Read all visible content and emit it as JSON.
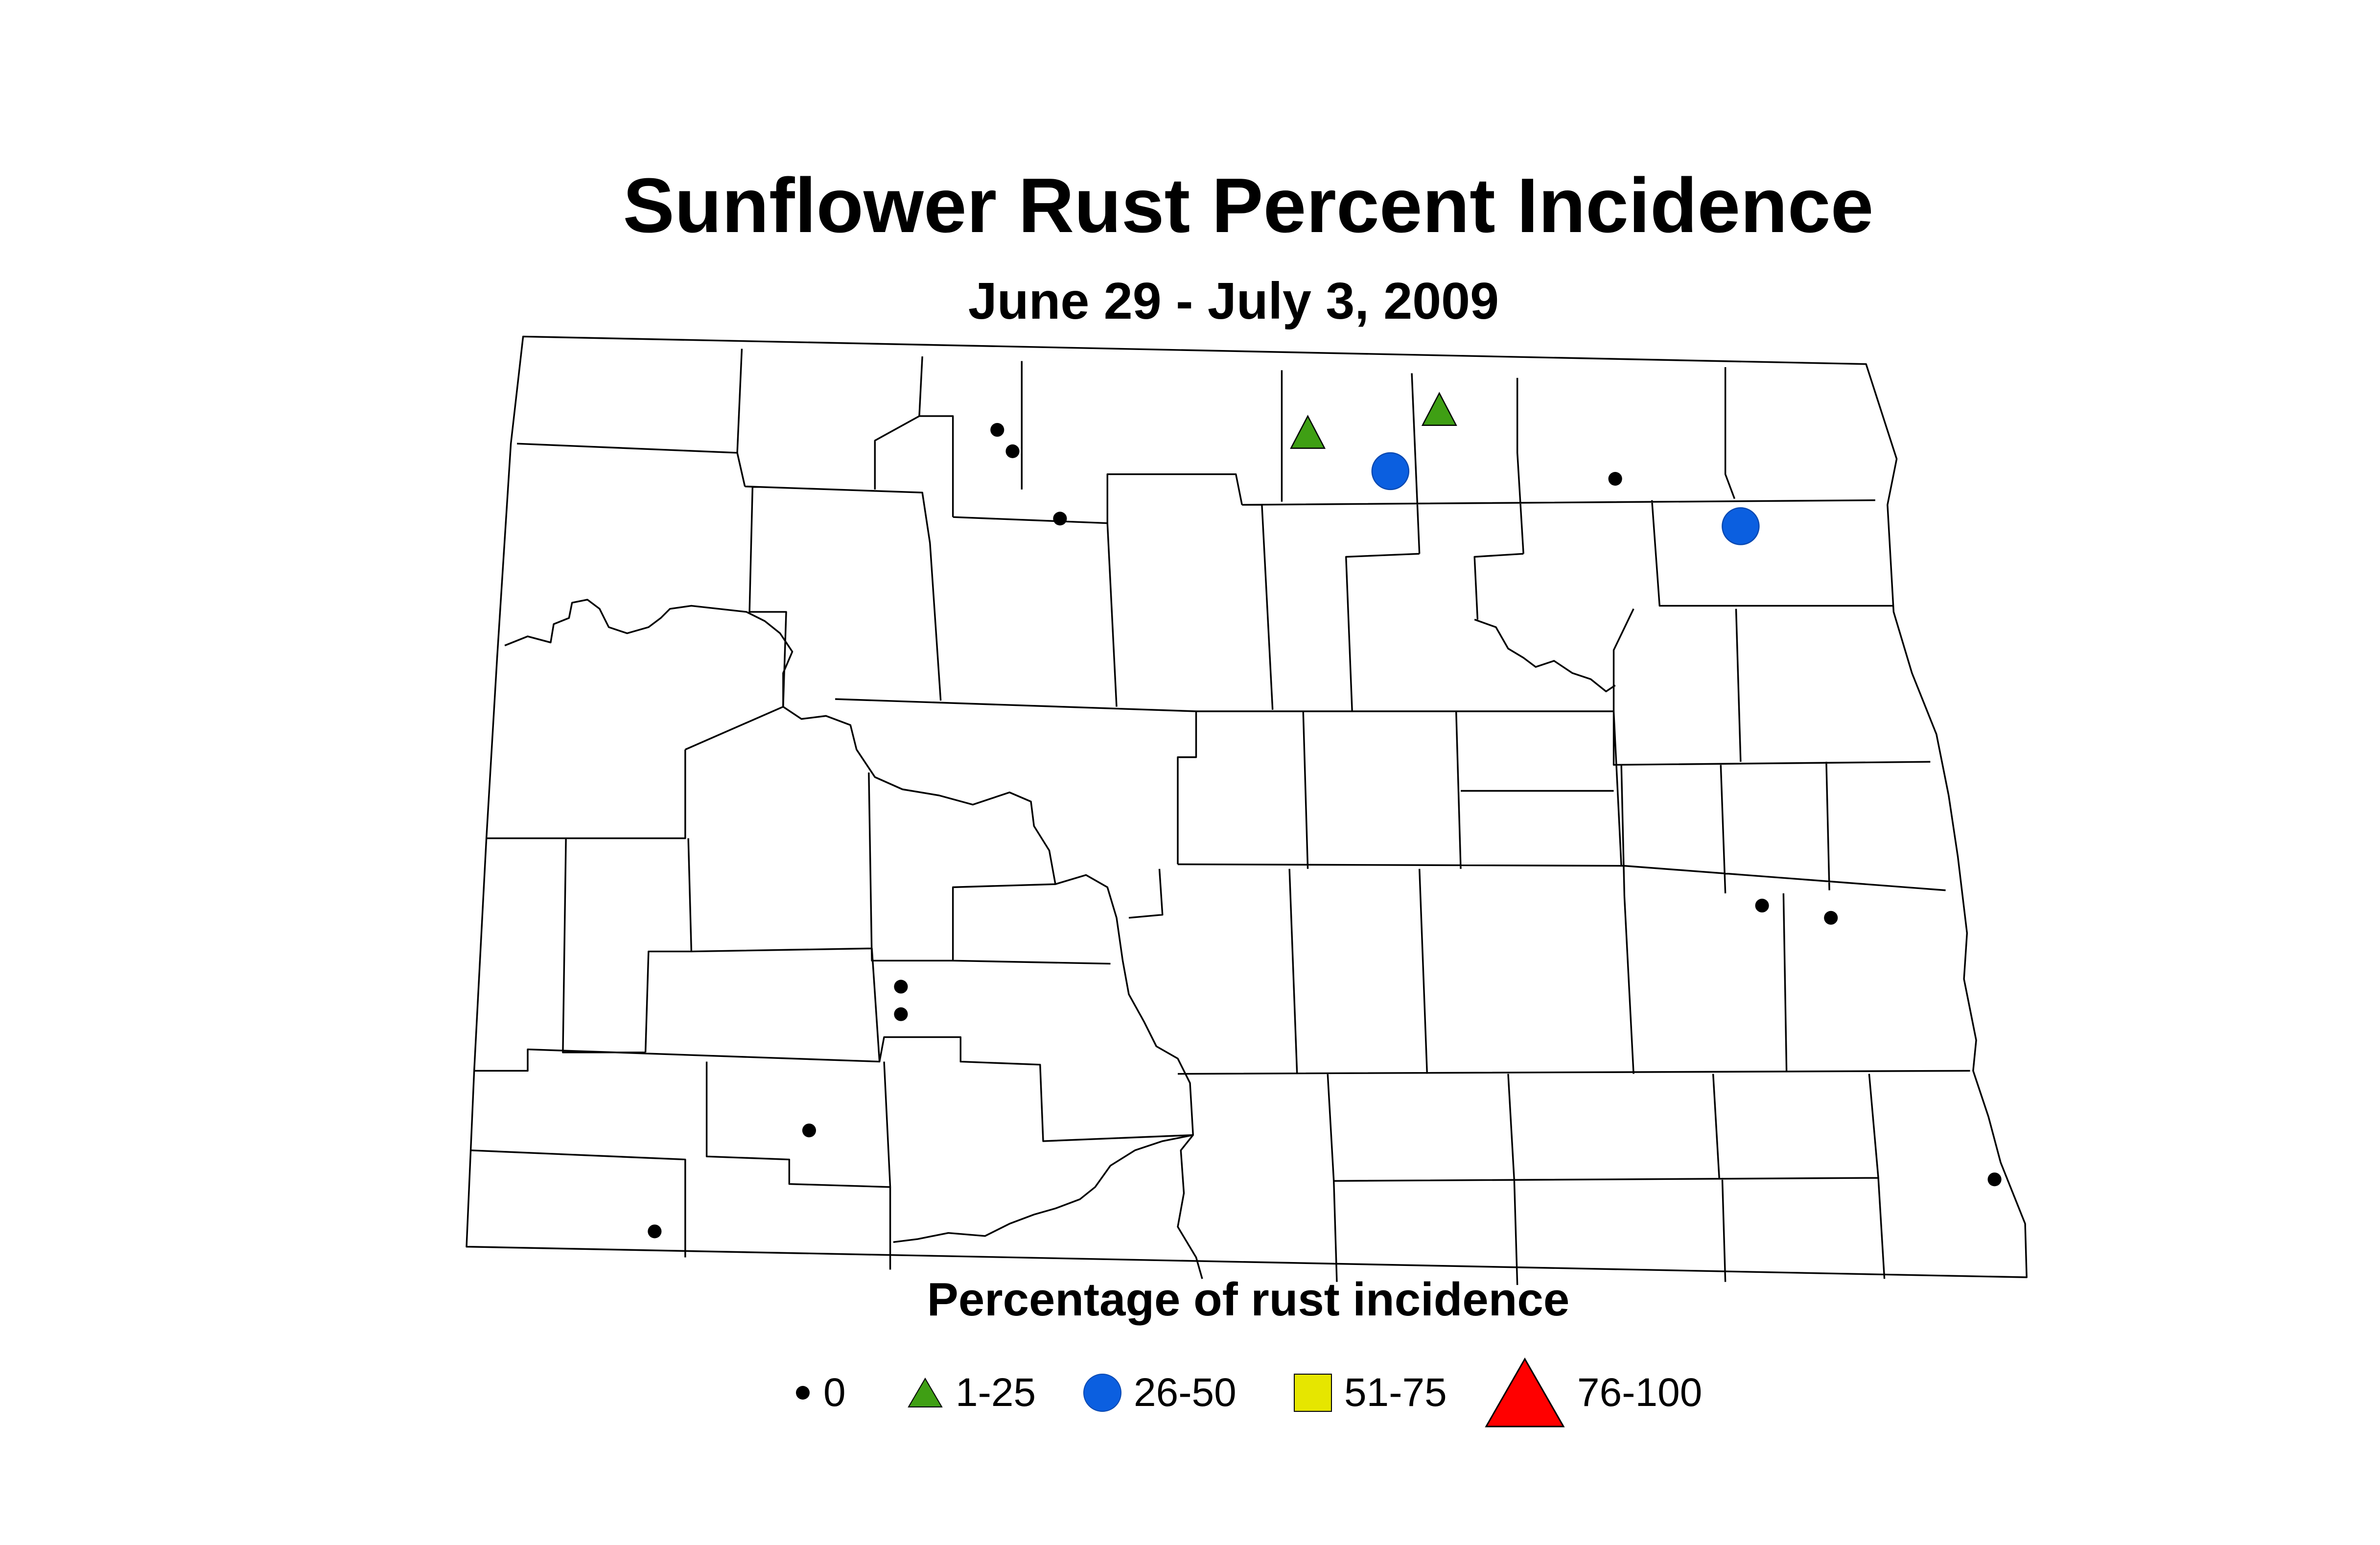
{
  "title": "Sunflower Rust Percent Incidence",
  "subtitle": "June 29 - July 3, 2009",
  "legend": {
    "title": "Percentage of rust incidence",
    "items": [
      {
        "label": "0",
        "symbol": "small-dot-icon",
        "color": "#000000"
      },
      {
        "label": "1-25",
        "symbol": "triangle-icon",
        "color": "#3f9f14"
      },
      {
        "label": "26-50",
        "symbol": "circle-icon",
        "color": "#0b5fe0"
      },
      {
        "label": "51-75",
        "symbol": "square-icon",
        "color": "#e6e600"
      },
      {
        "label": "76-100",
        "symbol": "large-triangle-icon",
        "color": "#ff0000"
      }
    ]
  }
}
